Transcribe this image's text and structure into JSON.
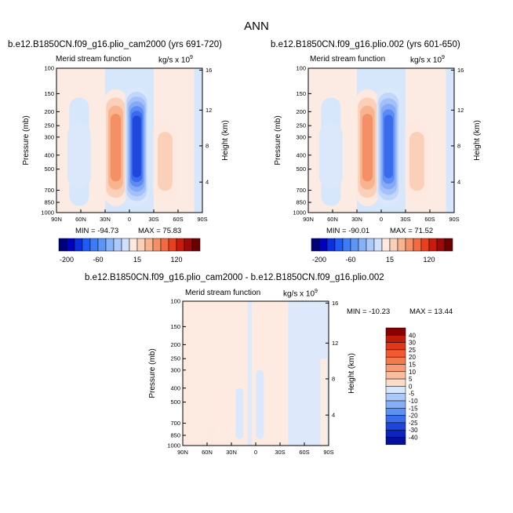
{
  "title": "ANN",
  "panels": [
    {
      "case": "b.e12.B1850CN.f09_g16.plio_cam2000 (yrs 691-720)",
      "field": "Merid stream function",
      "units": "kg/s x 10",
      "units_exp": "9",
      "min_label": "MIN = -94.73",
      "max_label": "MAX = 75.83",
      "ylabel": "Pressure (mb)",
      "ylabel_right": "Height (km)"
    },
    {
      "case": "b.e12.B1850CN.f09_g16.plio.002 (yrs 601-650)",
      "field": "Merid stream function",
      "units": "kg/s x 10",
      "units_exp": "9",
      "min_label": "MIN = -90.01",
      "max_label": "MAX = 71.52",
      "ylabel": "Pressure (mb)",
      "ylabel_right": "Height (km)"
    },
    {
      "case": "b.e12.B1850CN.f09_g16.plio_cam2000 - b.e12.B1850CN.f09_g16.plio.002",
      "field": "Merid stream function",
      "units": "kg/s x 10",
      "units_exp": "9",
      "min_label": "MIN = -10.23",
      "max_label": "MAX = 13.44",
      "ylabel": "Pressure (mb)",
      "ylabel_right": "Height (km)"
    }
  ],
  "chart_data": [
    {
      "type": "contour",
      "title": "b.e12.B1850CN.f09_g16.plio_cam2000 (yrs 691-720)",
      "variable": "Merid stream function",
      "xticks": [
        "90N",
        "60N",
        "30N",
        "0",
        "30S",
        "60S",
        "90S"
      ],
      "yticks": [
        "100",
        "150",
        "200",
        "250",
        "300",
        "400",
        "500",
        "700",
        "850",
        "1000"
      ],
      "height_ticks": [
        "16",
        "12",
        "8",
        "4"
      ],
      "ylabel": "Pressure (mb)",
      "ylabel_right": "Height (km)",
      "min": -94.73,
      "max": 75.83,
      "features": [
        {
          "lat": 62,
          "p_top": 240,
          "p_bottom": 680,
          "value": -15
        },
        {
          "lat": 17,
          "p_top": 140,
          "p_bottom": 900,
          "value": 55
        },
        {
          "lat": -9,
          "p_top": 135,
          "p_bottom": 900,
          "value": -85
        },
        {
          "lat": -44,
          "p_top": 230,
          "p_bottom": 850,
          "value": 25
        }
      ]
    },
    {
      "type": "contour",
      "title": "b.e12.B1850CN.f09_g16.plio.002 (yrs 601-650)",
      "variable": "Merid stream function",
      "xticks": [
        "90N",
        "60N",
        "30N",
        "0",
        "30S",
        "60S",
        "90S"
      ],
      "yticks": [
        "100",
        "150",
        "200",
        "250",
        "300",
        "400",
        "500",
        "700",
        "850",
        "1000"
      ],
      "height_ticks": [
        "16",
        "12",
        "8",
        "4"
      ],
      "ylabel": "Pressure (mb)",
      "ylabel_right": "Height (km)",
      "min": -90.01,
      "max": 71.52,
      "features": [
        {
          "lat": 62,
          "p_top": 240,
          "p_bottom": 680,
          "value": -15
        },
        {
          "lat": 17,
          "p_top": 140,
          "p_bottom": 900,
          "value": 50
        },
        {
          "lat": -9,
          "p_top": 135,
          "p_bottom": 900,
          "value": -80
        },
        {
          "lat": -44,
          "p_top": 230,
          "p_bottom": 850,
          "value": 25
        }
      ]
    },
    {
      "type": "contour",
      "title": "b.e12.B1850CN.f09_g16.plio_cam2000 - b.e12.B1850CN.f09_g16.plio.002",
      "variable": "Merid stream function",
      "xticks": [
        "90N",
        "60N",
        "30N",
        "0",
        "30S",
        "60S",
        "90S"
      ],
      "yticks": [
        "100",
        "150",
        "200",
        "250",
        "300",
        "400",
        "500",
        "700",
        "850",
        "1000"
      ],
      "height_ticks": [
        "16",
        "12",
        "8",
        "4"
      ],
      "ylabel": "Pressure (mb)",
      "ylabel_right": "Height (km)",
      "min": -10.23,
      "max": 13.44,
      "features": [
        {
          "lat": 20,
          "p_top": 400,
          "p_bottom": 900,
          "value": -5
        },
        {
          "lat": -5,
          "p_top": 300,
          "p_bottom": 900,
          "value": -5
        },
        {
          "lat": 55,
          "p_top": 700,
          "p_bottom": 900,
          "value": 5
        }
      ]
    }
  ],
  "colorbar_top": {
    "labels": [
      "-200",
      "-60",
      "15",
      "120"
    ],
    "colors": [
      "#00007a",
      "#0000bd",
      "#0a2fe0",
      "#1f5cf5",
      "#3d7cf5",
      "#5c96f5",
      "#86b2f7",
      "#adc9f9",
      "#cfe0fb",
      "#fde9df",
      "#fbd0b9",
      "#f8b48f",
      "#f58f66",
      "#f26a42",
      "#e8401d",
      "#c91a0c",
      "#9b0a08",
      "#6b0000"
    ]
  },
  "colorbar_diff": {
    "labels": [
      "40",
      "30",
      "25",
      "20",
      "15",
      "10",
      "5",
      "0",
      "-5",
      "-10",
      "-15",
      "-20",
      "-25",
      "-30",
      "-40"
    ],
    "colors": [
      "#8a0000",
      "#c01a0a",
      "#e03818",
      "#f25a30",
      "#f47a4e",
      "#f79b76",
      "#f9bc9e",
      "#fbdcc8",
      "#d5e6fb",
      "#aac8f8",
      "#86aff6",
      "#5e90f2",
      "#3a6cec",
      "#1e45dc",
      "#0b26c0",
      "#02109a"
    ]
  }
}
